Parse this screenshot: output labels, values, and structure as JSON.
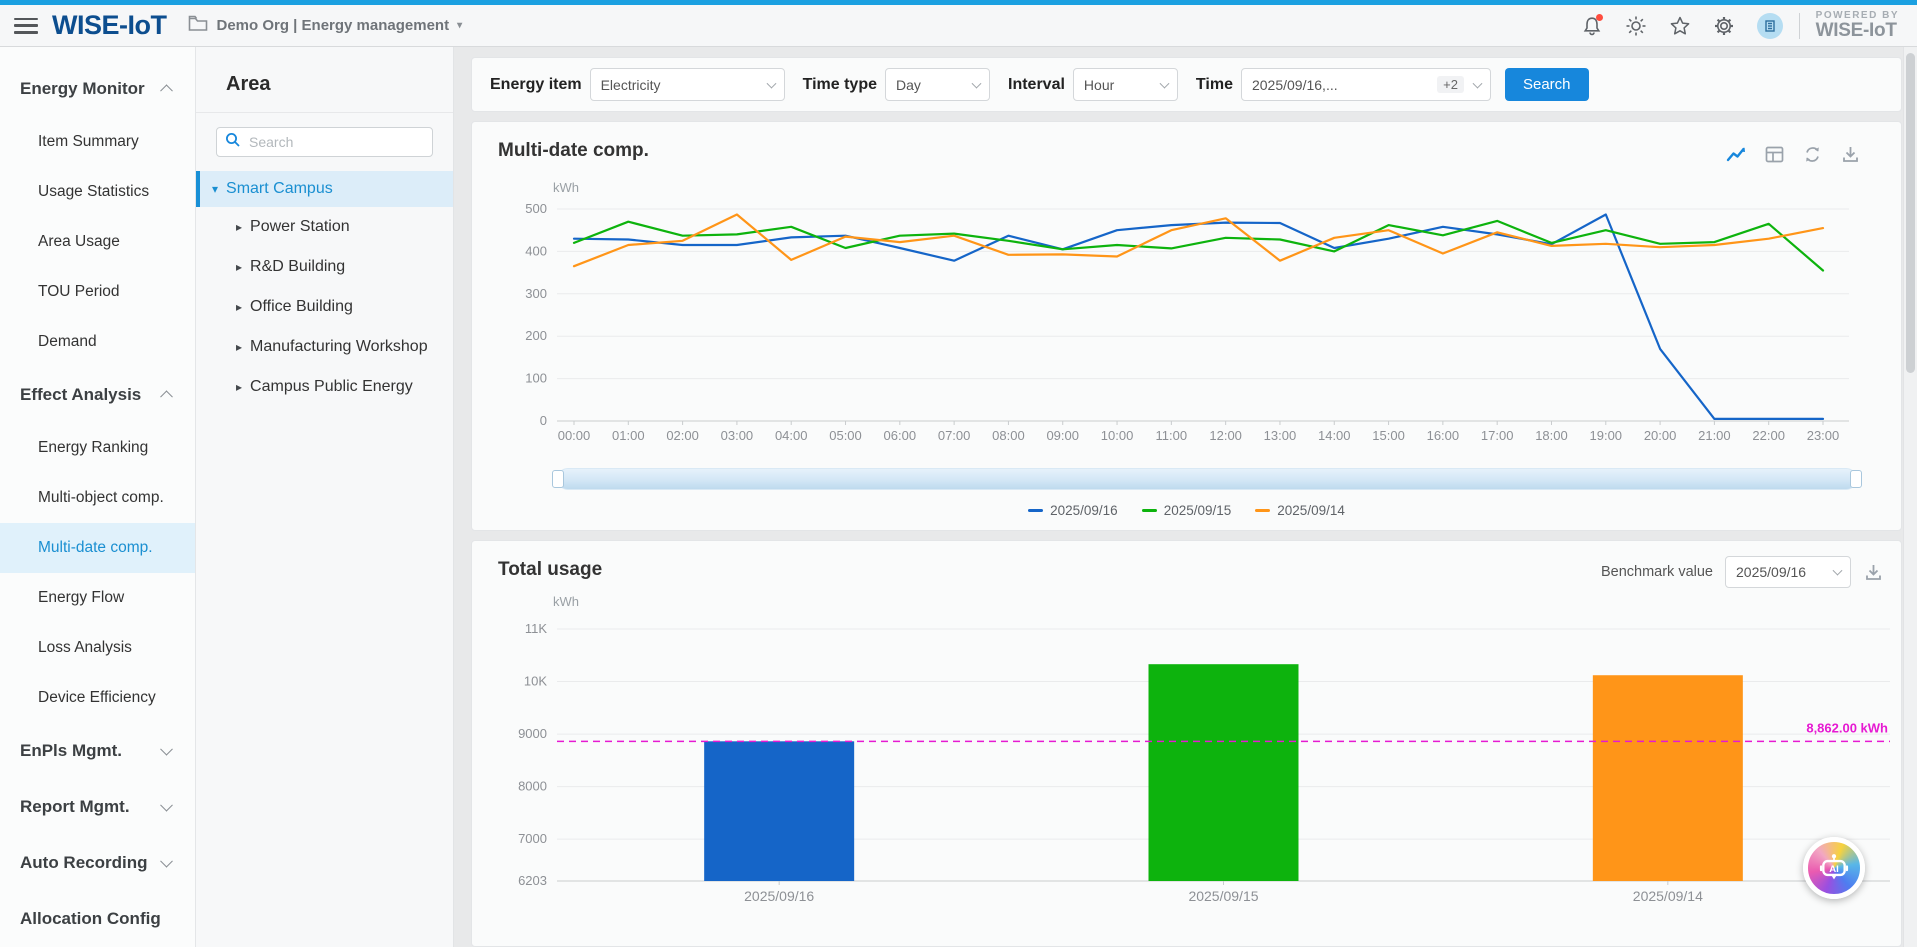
{
  "header": {
    "logo_text": "WISE-IoT",
    "org_label": "Demo Org | Energy management",
    "powered_by": "POWERED BY",
    "powered_brand": "WISE-IoT"
  },
  "sidebar": {
    "selected": "Multi-date comp.",
    "sections": [
      {
        "label": "Energy Monitor",
        "chevron": "up",
        "items": [
          "Item Summary",
          "Usage Statistics",
          "Area Usage",
          "TOU Period",
          "Demand"
        ]
      },
      {
        "label": "Effect Analysis",
        "chevron": "up",
        "items": [
          "Energy Ranking",
          "Multi-object comp.",
          "Multi-date comp.",
          "Energy Flow",
          "Loss Analysis",
          "Device Efficiency"
        ]
      },
      {
        "label": "EnPls Mgmt.",
        "chevron": "down",
        "items": []
      },
      {
        "label": "Report Mgmt.",
        "chevron": "down",
        "items": []
      },
      {
        "label": "Auto Recording",
        "chevron": "down",
        "items": []
      },
      {
        "label": "Allocation Config",
        "chevron": "",
        "items": []
      }
    ]
  },
  "area": {
    "title": "Area",
    "search_placeholder": "Search",
    "tree": [
      {
        "label": "Smart Campus",
        "selected": true,
        "expanded": true
      },
      {
        "label": "Power Station",
        "selected": false,
        "expanded": false
      },
      {
        "label": "R&D Building",
        "selected": false,
        "expanded": false
      },
      {
        "label": "Office Building",
        "selected": false,
        "expanded": false
      },
      {
        "label": "Manufacturing Workshop",
        "selected": false,
        "expanded": false
      },
      {
        "label": "Campus Public Energy",
        "selected": false,
        "expanded": false
      }
    ]
  },
  "filters": {
    "energy_item_label": "Energy item",
    "energy_item_value": "Electricity",
    "time_type_label": "Time type",
    "time_type_value": "Day",
    "interval_label": "Interval",
    "interval_value": "Hour",
    "time_label": "Time",
    "time_value": "2025/09/16,...",
    "time_extra": "+2",
    "search_label": "Search"
  },
  "panels": {
    "line": {
      "title": "Multi-date comp."
    },
    "bar": {
      "title": "Total usage",
      "benchmark_label": "Benchmark value",
      "benchmark_select": "2025/09/16"
    }
  },
  "ai": {
    "label": "AI"
  },
  "colors": {
    "topbar": "#1ba0e1",
    "accent": "#1787dc",
    "benchmark": "#e61ad2"
  },
  "chart_data": [
    {
      "type": "line",
      "title": "Multi-date comp.",
      "unit": "kWh",
      "ylim": [
        0,
        500
      ],
      "yticks": [
        0,
        100,
        200,
        300,
        400,
        500
      ],
      "grid": true,
      "legend_position": "bottom",
      "x": [
        "00:00",
        "01:00",
        "02:00",
        "03:00",
        "04:00",
        "05:00",
        "06:00",
        "07:00",
        "08:00",
        "09:00",
        "10:00",
        "11:00",
        "12:00",
        "13:00",
        "14:00",
        "15:00",
        "16:00",
        "17:00",
        "18:00",
        "19:00",
        "20:00",
        "21:00",
        "22:00",
        "23:00"
      ],
      "series": [
        {
          "name": "2025/09/16",
          "color": "#1565c8",
          "values": [
            430,
            428,
            415,
            415,
            433,
            437,
            408,
            378,
            437,
            405,
            450,
            462,
            468,
            467,
            408,
            430,
            458,
            440,
            417,
            487,
            170,
            5,
            5,
            5
          ]
        },
        {
          "name": "2025/09/15",
          "color": "#0db30d",
          "values": [
            420,
            470,
            437,
            440,
            458,
            408,
            437,
            442,
            425,
            405,
            415,
            407,
            432,
            428,
            400,
            462,
            438,
            472,
            420,
            450,
            418,
            422,
            465,
            355
          ]
        },
        {
          "name": "2025/09/14",
          "color": "#ff9518",
          "values": [
            365,
            415,
            425,
            487,
            380,
            435,
            422,
            437,
            392,
            393,
            388,
            450,
            478,
            378,
            432,
            450,
            395,
            445,
            413,
            418,
            410,
            415,
            430,
            455
          ]
        }
      ]
    },
    {
      "type": "bar",
      "title": "Total usage",
      "unit": "kWh",
      "ylim": [
        6203,
        11000
      ],
      "yticks": [
        {
          "v": 6203,
          "l": "6203"
        },
        {
          "v": 7000,
          "l": "7000"
        },
        {
          "v": 8000,
          "l": "8000"
        },
        {
          "v": 9000,
          "l": "9000"
        },
        {
          "v": 10000,
          "l": "10K"
        },
        {
          "v": 11000,
          "l": "11K"
        }
      ],
      "categories": [
        "2025/09/16",
        "2025/09/15",
        "2025/09/14"
      ],
      "values": [
        8862,
        10330,
        10120
      ],
      "colors": [
        "#1565c8",
        "#0db30d",
        "#ff9518"
      ],
      "benchmark": {
        "value": 8862,
        "label": "8,862.00 kWh",
        "color": "#e61ad2"
      }
    }
  ]
}
